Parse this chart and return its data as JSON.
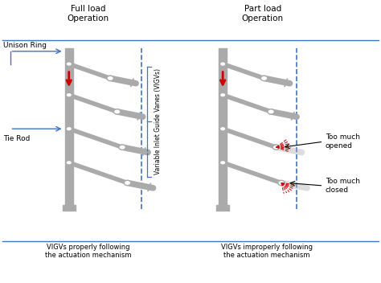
{
  "title_left": "Full load\nOperation",
  "title_right": "Part load\nOperation",
  "bottom_left": "VIGVs properly following\nthe actuation mechanism",
  "bottom_right": "VIGVs improperly following\nthe actuation mechanism",
  "label_unison_ring": "Unison Ring",
  "label_tie_rod": "Tie Rod",
  "label_vigv": "Variable Inlet Guide Vanes (VIGVs)",
  "label_too_much_opened": "Too much\nopened",
  "label_too_much_closed": "Too much\nclosed",
  "bg_color": "#ffffff",
  "bar_color": "#aaaaaa",
  "dashed_color": "#4472c4",
  "arrow_color": "#cc0000",
  "text_color": "#000000",
  "blue_arrow_color": "#4472c4",
  "fig_width": 4.74,
  "fig_height": 3.52,
  "dpi": 100
}
